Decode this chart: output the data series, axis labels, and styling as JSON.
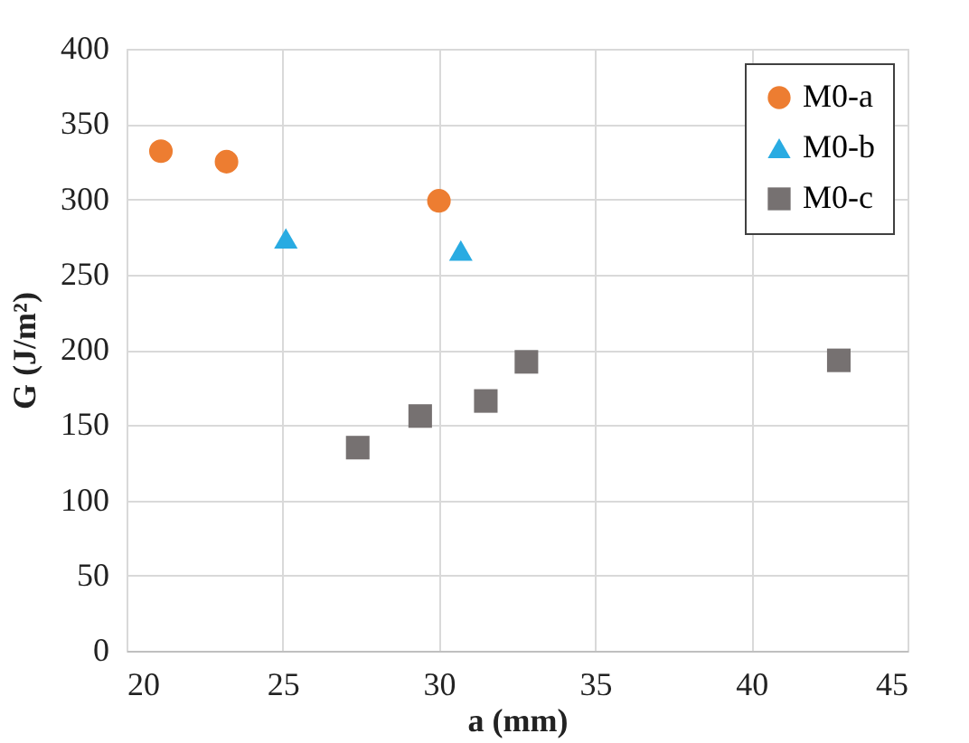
{
  "chart_data": {
    "type": "scatter",
    "xlabel": "a (mm)",
    "ylabel": "G (J/m²)",
    "xlim": [
      20,
      45
    ],
    "xticks": [
      20,
      25,
      30,
      35,
      40,
      45
    ],
    "ylim": [
      0,
      400
    ],
    "yticks": [
      0,
      50,
      100,
      150,
      200,
      250,
      300,
      350,
      400
    ],
    "grid": true,
    "legend": "top right",
    "series": [
      {
        "name": "M0-a",
        "color": "#ed7d31",
        "marker": "circle",
        "x": [
          21.1,
          23.2,
          30.0
        ],
        "values": [
          332,
          325,
          299
        ]
      },
      {
        "name": "M0-b",
        "color": "#29abe2",
        "marker": "triangle",
        "x": [
          25.1,
          30.7
        ],
        "values": [
          274,
          266
        ]
      },
      {
        "name": "M0-c",
        "color": "#767171",
        "marker": "square",
        "x": [
          27.4,
          29.4,
          31.5,
          32.8,
          42.8
        ],
        "values": [
          135,
          156,
          166,
          192,
          193
        ]
      }
    ]
  }
}
